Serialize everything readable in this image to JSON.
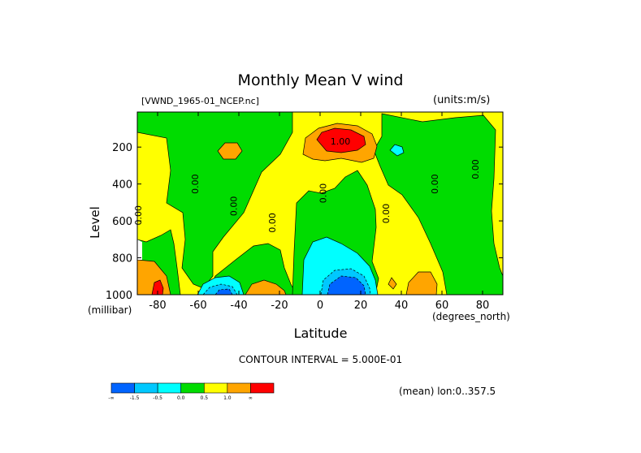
{
  "chart_data": {
    "type": "contour",
    "title": "Monthly Mean V wind",
    "file_label": "[VWND_1965-01_NCEP.nc]",
    "units_label": "(units:m/s)",
    "xlabel": "Latitude",
    "x_unit": "(degrees_north)",
    "ylabel": "Level",
    "y_unit": "(millibar)",
    "contour_interval": "CONTOUR INTERVAL = 5.000E-01",
    "mean_label": "(mean) lon:0..357.5",
    "xlim": [
      -90,
      90
    ],
    "ylim": [
      1000,
      10
    ],
    "xticks": [
      -80,
      -60,
      -40,
      -20,
      0,
      20,
      40,
      60,
      80
    ],
    "xtick_labels": [
      "-80",
      "-60",
      "-40",
      "-20",
      "0",
      "20",
      "40",
      "60",
      "80"
    ],
    "yticks": [
      200,
      400,
      600,
      800,
      1000
    ],
    "ytick_labels": [
      "200",
      "400",
      "600",
      "800",
      "1000"
    ],
    "contour_labels": [
      {
        "text": "0.00",
        "x": -60,
        "y": 400
      },
      {
        "text": "0.00",
        "x": -41,
        "y": 520
      },
      {
        "text": "0.00",
        "x": -22,
        "y": 610
      },
      {
        "text": "0.00",
        "x": 3,
        "y": 450
      },
      {
        "text": "1.00",
        "x": 10,
        "y": 185
      },
      {
        "text": "0.00",
        "x": 34,
        "y": 560
      },
      {
        "text": "0.00",
        "x": 58,
        "y": 400
      },
      {
        "text": "0.00",
        "x": 78,
        "y": 320
      },
      {
        "text": "0.00",
        "x": -88,
        "y": 570
      }
    ],
    "colorbar": {
      "colors": [
        "#0064ff",
        "#00c8ff",
        "#00ffff",
        "#00dc00",
        "#ffff00",
        "#ffa500",
        "#ff0000"
      ],
      "labels": [
        "-∞",
        "-1.5",
        "-0.5",
        "0.0",
        "0.5",
        "1.0",
        "∞"
      ]
    },
    "colors": {
      "yellow": "#ffff00",
      "green": "#00dc00",
      "orange": "#ffa500",
      "red": "#ff0000",
      "cyan": "#00ffff",
      "lightblue": "#00c8ff",
      "blue": "#0064ff"
    }
  }
}
